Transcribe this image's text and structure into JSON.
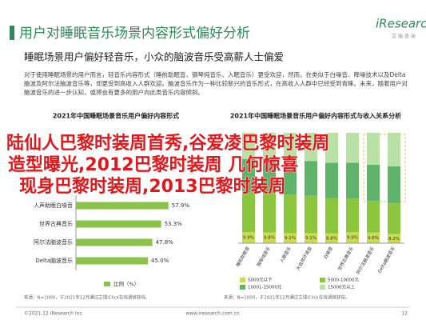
{
  "header": {
    "title": "用户对睡眠音乐场景内容形式偏好分析",
    "logo": "iResearch",
    "logo_sub": "艾 瑞 咨 询",
    "subtitle": "睡眠场景用户偏好轻音乐，小众的脑波音乐受高薪人士偏爱",
    "paragraph": "对于使用睡眠场景的用户而言，轻音乐内容形式（睡前助眠音、钢琴纯音乐、入眠音乐）更受欢迎，然而，在类似于白噪音、降噪技术以及Delta脑波及阿尔法脑波音乐等，却更受到高收入人群欢迎。脑波音乐作为一种比较新兴的音乐形式，在高收入人群中已经受到青睐。未来，随着用户对脑波音乐的进一步认知，或将会有更多的用户向此类音乐内容倾斜。"
  },
  "chart_data": [
    {
      "type": "bar",
      "orientation": "horizontal",
      "title": "2021年中国睡眠场景音乐用户偏好内容形式",
      "categories": [
        "人声助眠白噪音",
        "世界古典音乐",
        "阿尔法脑波音乐",
        "Delta脑波音乐"
      ],
      "series": [
        {
          "name": "比例（%）",
          "color": "#8bc34a",
          "values": [
            57.9,
            53.3,
            47.8,
            45.0
          ],
          "value_labels": [
            "57.9%",
            "53.3%",
            "47.8%",
            "45.0%"
          ]
        }
      ],
      "xlim": [
        0,
        100
      ],
      "source": "来源：N=1000，于2021年12月通过艾瑞iClick在线调研获得。"
    },
    {
      "type": "stacked_bar",
      "title": "2021年中国睡眠场景音乐用户偏好内容形式与收入关系分析",
      "categories": [
        "睡前助眠音",
        "钢琴纯音乐",
        "入眠音乐",
        "大自然环境音",
        "白噪音",
        "世界古典音乐",
        "阿尔法脑波音乐",
        "Delta脑波音乐"
      ],
      "series": [
        {
          "name": "5000元以下",
          "color": "#c9dc4c",
          "values": [
            9.9,
            9.8,
            9.1,
            9.1,
            8.8,
            9.9,
            9.6,
            8.2
          ],
          "value_labels": [
            "9.9%",
            "9.8%",
            "9.1%",
            "9.1%",
            "8.8%",
            "9.9%",
            "9.6%",
            "8.2%"
          ]
        },
        {
          "name": "5000-10000元",
          "color": "#8cc63f",
          "values": [
            36.2,
            35.4,
            34.8,
            33.9,
            32.1,
            30.5,
            28.7,
            27.9
          ]
        },
        {
          "name": "10001-15000元",
          "color": "#5fb36b",
          "values": [
            30.1,
            30.8,
            31.2,
            31.5,
            31.9,
            32.4,
            32.8,
            33.5
          ]
        },
        {
          "name": "15000元以上",
          "color": "#b9e0a5",
          "values": [
            23.8,
            24.0,
            24.9,
            25.5,
            27.2,
            27.2,
            28.9,
            30.4
          ]
        }
      ],
      "ylim": [
        0,
        100
      ],
      "source": "来源：N=1000，于2021年12月通过艾瑞iClick在线调研获得。"
    }
  ],
  "overlay": {
    "lines": [
      "陆仙人巴黎时装周首秀,谷爱凌巴黎时装周",
      "造型曝光,2012巴黎时装周 几何惊喜",
      "现身巴黎时装周,2013巴黎时装周"
    ]
  },
  "footer": {
    "copyright": "©2021.12 iResearch Inc.",
    "site": "www.iresearch.com.cn",
    "page": "12"
  }
}
